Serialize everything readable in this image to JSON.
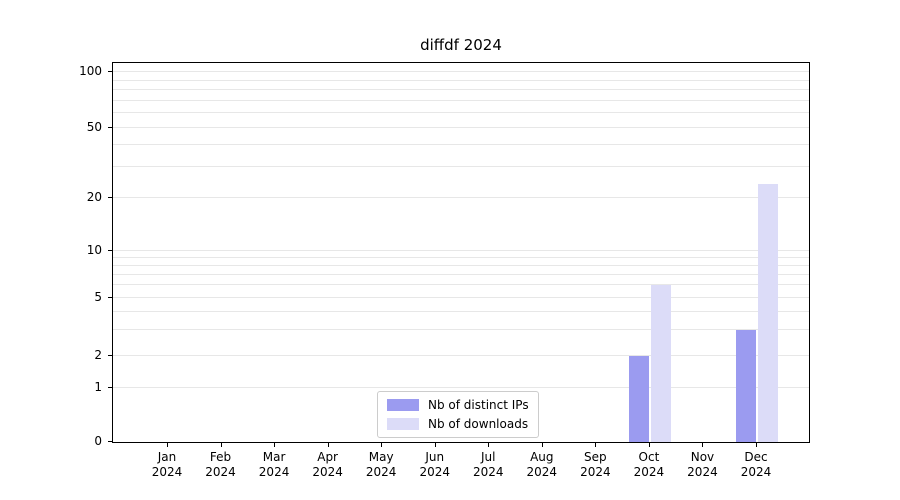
{
  "title": "diffdf 2024",
  "chart_data": {
    "type": "bar",
    "title": "diffdf 2024",
    "categories": [
      "Jan",
      "Feb",
      "Mar",
      "Apr",
      "May",
      "Jun",
      "Jul",
      "Aug",
      "Sep",
      "Oct",
      "Nov",
      "Dec"
    ],
    "x_sub_label": "2024",
    "series": [
      {
        "name": "Nb of distinct IPs",
        "color": "#9b9bf0",
        "values": [
          0,
          0,
          0,
          0,
          0,
          0,
          0,
          0,
          0,
          2,
          0,
          3
        ]
      },
      {
        "name": "Nb of downloads",
        "color": "#dcdcf8",
        "values": [
          0,
          0,
          0,
          0,
          0,
          0,
          0,
          0,
          0,
          6,
          0,
          24
        ]
      }
    ],
    "y_ticks": [
      0,
      1,
      2,
      5,
      10,
      20,
      50,
      100
    ],
    "y_scale": "symlog",
    "ylim": [
      0,
      112
    ],
    "xlabel": "",
    "ylabel": "",
    "grid": true,
    "legend_position": "lower center"
  }
}
